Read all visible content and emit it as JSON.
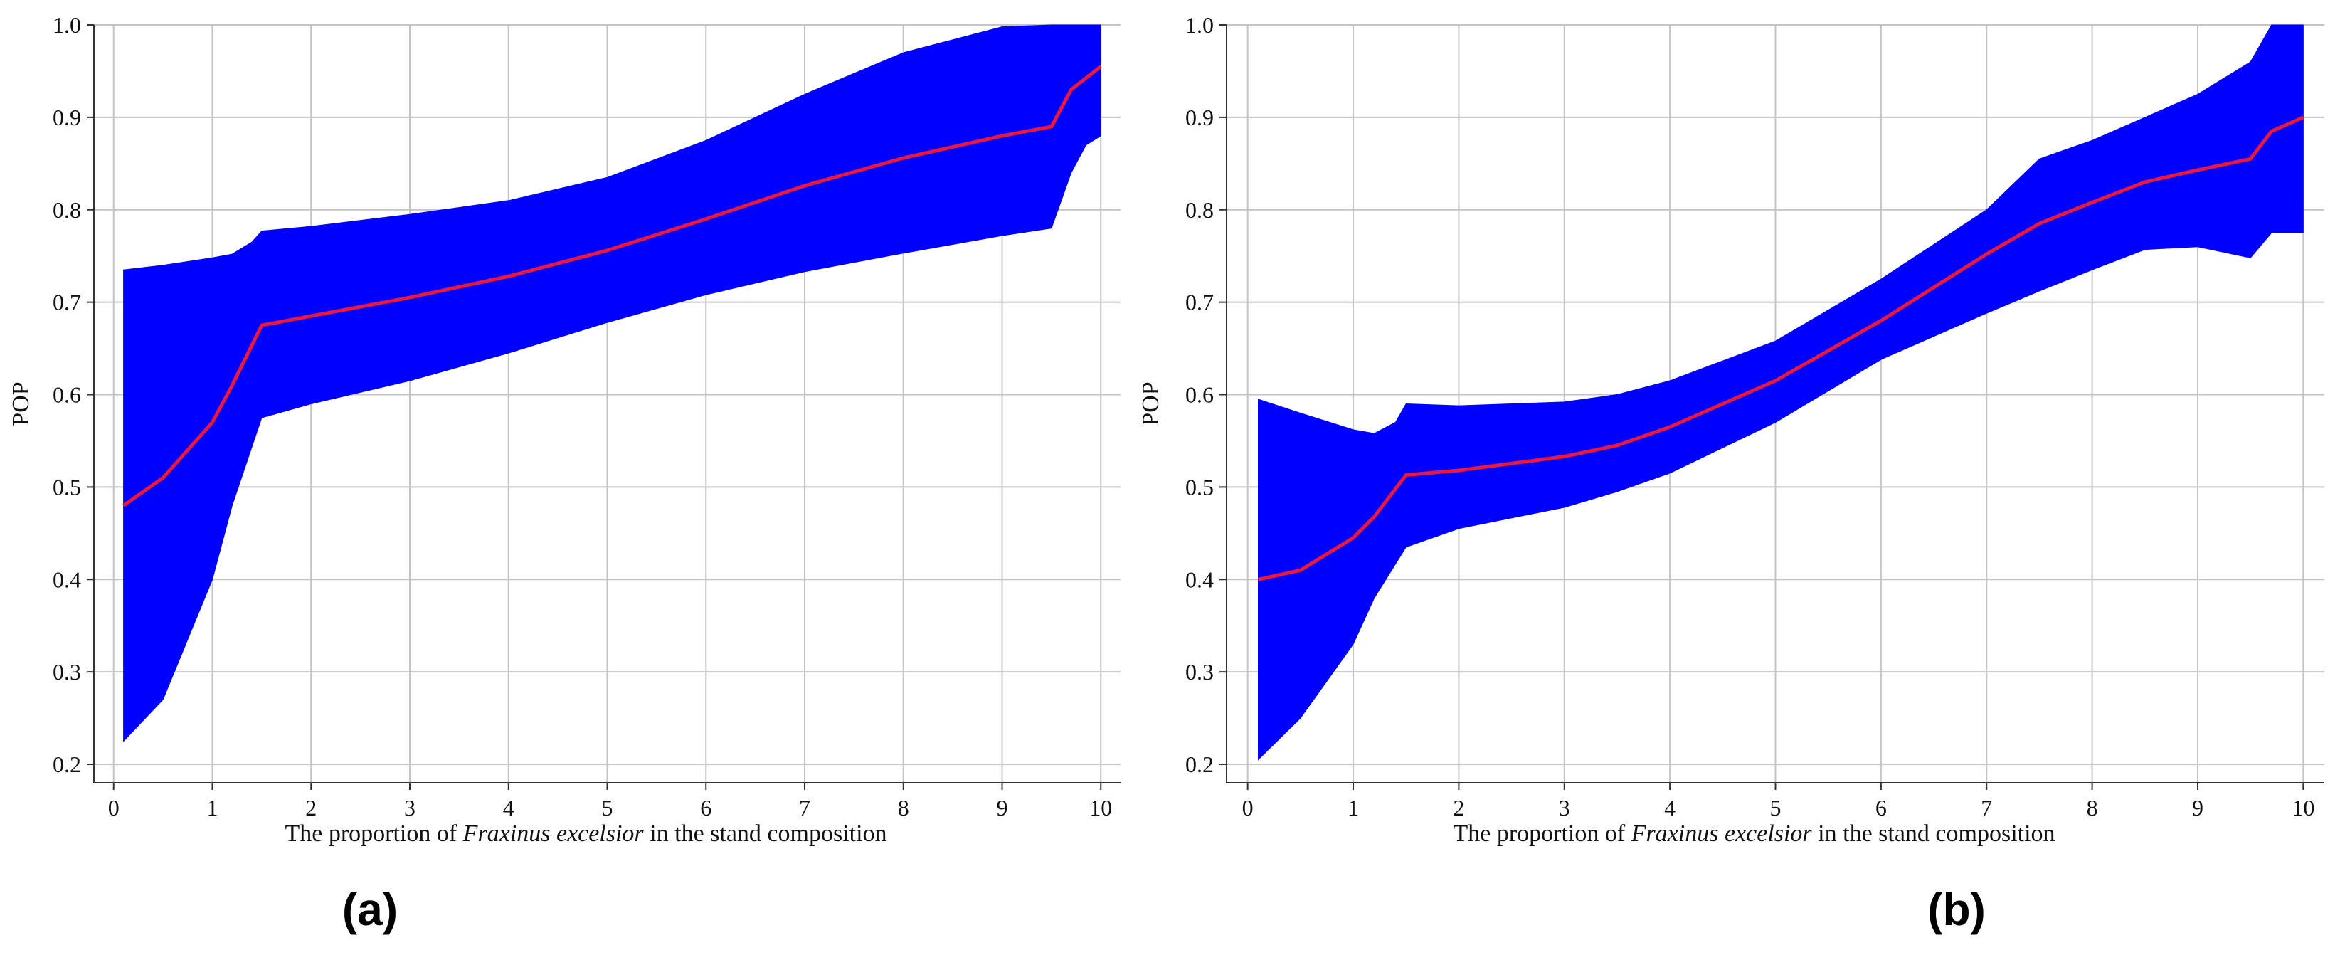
{
  "chart_data": [
    {
      "type": "area",
      "panel_label": "(a)",
      "xlabel_parts": [
        "The proportion of ",
        "Fraxinus excelsior",
        " in the stand composition"
      ],
      "ylabel": "POP",
      "xlim": [
        -0.2,
        10.2
      ],
      "ylim": [
        0.18,
        1.0
      ],
      "x_ticks": [
        "0",
        "1",
        "2",
        "3",
        "4",
        "5",
        "6",
        "7",
        "8",
        "9",
        "10"
      ],
      "y_ticks": [
        "0.2",
        "0.3",
        "0.4",
        "0.5",
        "0.6",
        "0.7",
        "0.8",
        "0.9",
        "1.0"
      ],
      "grid": true,
      "colors": {
        "band": "#0000ff",
        "line": "#e8193c"
      },
      "series": [
        {
          "x": [
            0.1,
            0.5,
            1.0,
            1.2,
            1.5,
            2,
            3,
            4,
            5,
            6,
            7,
            8,
            9,
            9.5,
            9.7,
            10
          ],
          "y": [
            0.48,
            0.51,
            0.57,
            0.61,
            0.675,
            0.685,
            0.705,
            0.728,
            0.756,
            0.79,
            0.826,
            0.856,
            0.88,
            0.89,
            0.93,
            0.955
          ]
        },
        {
          "x": [
            0.1,
            0.5,
            1.0,
            1.2,
            1.4,
            1.5,
            2,
            3,
            4,
            5,
            6,
            7,
            8,
            9,
            9.5,
            9.7,
            10
          ],
          "y": [
            0.735,
            0.74,
            0.748,
            0.752,
            0.765,
            0.777,
            0.782,
            0.795,
            0.81,
            0.835,
            0.875,
            0.925,
            0.97,
            0.998,
            1.0,
            1.0,
            1.0
          ]
        },
        {
          "x": [
            0.1,
            0.5,
            1.0,
            1.2,
            1.5,
            2,
            3,
            4,
            5,
            6,
            7,
            8,
            9,
            9.5,
            9.7,
            9.85,
            10
          ],
          "y": [
            0.225,
            0.27,
            0.4,
            0.48,
            0.575,
            0.59,
            0.615,
            0.645,
            0.678,
            0.708,
            0.733,
            0.753,
            0.772,
            0.78,
            0.84,
            0.87,
            0.88
          ]
        }
      ]
    },
    {
      "type": "area",
      "panel_label": "(b)",
      "xlabel_parts": [
        "The proportion of ",
        "Fraxinus excelsior",
        " in the stand composition"
      ],
      "ylabel": "POP",
      "xlim": [
        -0.2,
        10.2
      ],
      "ylim": [
        0.18,
        1.0
      ],
      "x_ticks": [
        "0",
        "1",
        "2",
        "3",
        "4",
        "5",
        "6",
        "7",
        "8",
        "9",
        "10"
      ],
      "y_ticks": [
        "0.2",
        "0.3",
        "0.4",
        "0.5",
        "0.6",
        "0.7",
        "0.8",
        "0.9",
        "1.0"
      ],
      "grid": true,
      "colors": {
        "band": "#0000ff",
        "line": "#e8193c"
      },
      "series": [
        {
          "x": [
            0.1,
            0.5,
            1.0,
            1.2,
            1.5,
            2,
            3,
            3.5,
            4,
            5,
            6,
            7,
            7.5,
            8,
            8.5,
            9,
            9.5,
            9.7,
            10
          ],
          "y": [
            0.4,
            0.41,
            0.445,
            0.468,
            0.513,
            0.518,
            0.533,
            0.545,
            0.565,
            0.615,
            0.68,
            0.752,
            0.785,
            0.808,
            0.83,
            0.843,
            0.855,
            0.885,
            0.9
          ]
        },
        {
          "x": [
            0.1,
            0.5,
            1.0,
            1.2,
            1.4,
            1.5,
            2,
            3,
            3.5,
            4,
            5,
            6,
            7,
            7.5,
            8,
            8.5,
            9,
            9.5,
            9.7,
            10
          ],
          "y": [
            0.595,
            0.58,
            0.562,
            0.558,
            0.57,
            0.59,
            0.588,
            0.592,
            0.6,
            0.615,
            0.658,
            0.725,
            0.8,
            0.855,
            0.875,
            0.9,
            0.925,
            0.96,
            1.0,
            1.0
          ]
        },
        {
          "x": [
            0.1,
            0.5,
            1.0,
            1.2,
            1.5,
            2,
            3,
            3.5,
            4,
            5,
            6,
            7,
            7.5,
            8,
            8.5,
            9,
            9.5,
            9.7,
            10
          ],
          "y": [
            0.205,
            0.25,
            0.33,
            0.38,
            0.435,
            0.455,
            0.478,
            0.495,
            0.515,
            0.57,
            0.638,
            0.688,
            0.712,
            0.735,
            0.757,
            0.76,
            0.748,
            0.775,
            0.775
          ]
        }
      ]
    }
  ]
}
